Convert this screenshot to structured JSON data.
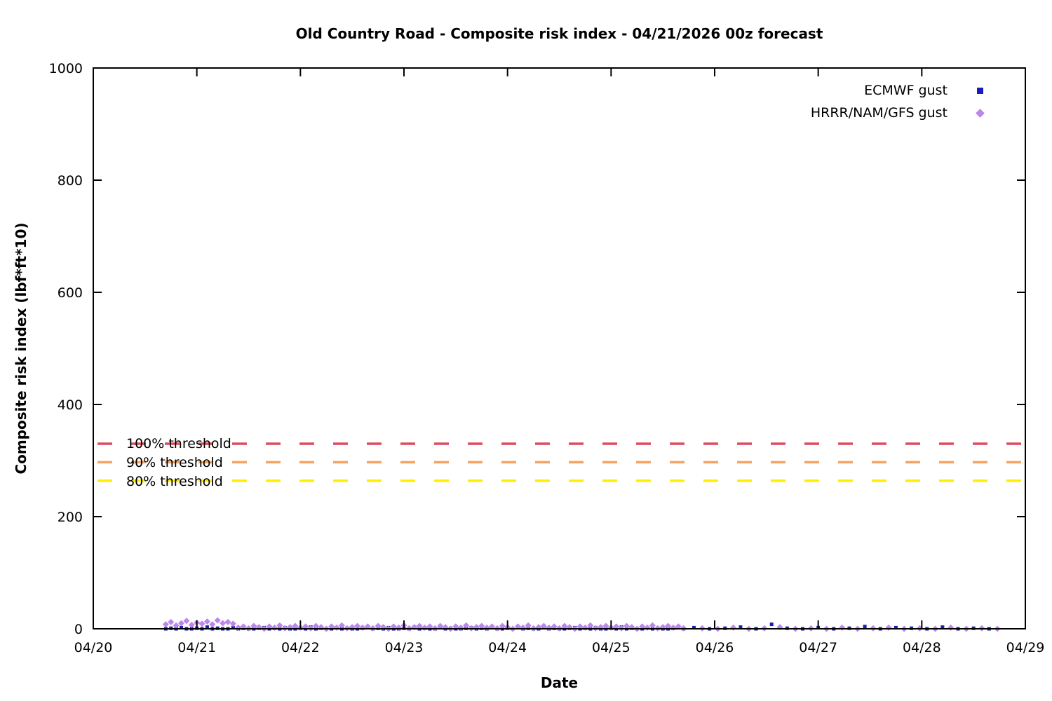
{
  "chart_data": {
    "type": "scatter",
    "title": "Old Country Road - Composite risk index - 04/21/2026 00z forecast",
    "xlabel": "Date",
    "ylabel": "Composite risk index (lbf*ft*10)",
    "xlim": [
      0,
      9
    ],
    "ylim": [
      0,
      1000
    ],
    "grid": false,
    "legend_position": "top-right-inside",
    "axis_color": "#000000",
    "x_ticks": [
      {
        "value": 0,
        "label": "04/20"
      },
      {
        "value": 1,
        "label": "04/21"
      },
      {
        "value": 2,
        "label": "04/22"
      },
      {
        "value": 3,
        "label": "04/23"
      },
      {
        "value": 4,
        "label": "04/24"
      },
      {
        "value": 5,
        "label": "04/25"
      },
      {
        "value": 6,
        "label": "04/26"
      },
      {
        "value": 7,
        "label": "04/27"
      },
      {
        "value": 8,
        "label": "04/28"
      },
      {
        "value": 9,
        "label": "04/29"
      }
    ],
    "y_ticks": [
      {
        "value": 0,
        "label": "0"
      },
      {
        "value": 200,
        "label": "200"
      },
      {
        "value": 400,
        "label": "400"
      },
      {
        "value": 600,
        "label": "600"
      },
      {
        "value": 800,
        "label": "800"
      },
      {
        "value": 1000,
        "label": "1000"
      }
    ],
    "thresholds": [
      {
        "label": "100% threshold",
        "value": 330,
        "color": "#dd4b5f"
      },
      {
        "label": "90% threshold",
        "value": 297,
        "color": "#f4a460"
      },
      {
        "label": "80% threshold",
        "value": 264,
        "color": "#ffee00"
      }
    ],
    "series": [
      {
        "name": "ECMWF gust",
        "marker": "square",
        "color": "#1c1cb8",
        "points": [
          [
            0.7,
            0
          ],
          [
            0.75,
            1
          ],
          [
            0.8,
            0
          ],
          [
            0.85,
            2
          ],
          [
            0.9,
            0
          ],
          [
            0.95,
            0
          ],
          [
            1.0,
            1
          ],
          [
            1.05,
            0
          ],
          [
            1.1,
            3
          ],
          [
            1.15,
            0
          ],
          [
            1.2,
            1
          ],
          [
            1.25,
            0
          ],
          [
            1.3,
            0
          ],
          [
            1.35,
            2
          ],
          [
            1.4,
            0
          ],
          [
            1.45,
            1
          ],
          [
            1.5,
            0
          ],
          [
            1.55,
            0
          ],
          [
            1.6,
            1
          ],
          [
            1.65,
            2
          ],
          [
            1.7,
            0
          ],
          [
            1.75,
            1
          ],
          [
            1.8,
            0
          ],
          [
            1.85,
            2
          ],
          [
            1.9,
            0
          ],
          [
            1.95,
            0
          ],
          [
            2.0,
            1
          ],
          [
            2.05,
            0
          ],
          [
            2.1,
            3
          ],
          [
            2.15,
            0
          ],
          [
            2.2,
            1
          ],
          [
            2.25,
            0
          ],
          [
            2.3,
            0
          ],
          [
            2.35,
            2
          ],
          [
            2.4,
            0
          ],
          [
            2.45,
            1
          ],
          [
            2.5,
            0
          ],
          [
            2.55,
            0
          ],
          [
            2.6,
            1
          ],
          [
            2.65,
            2
          ],
          [
            2.7,
            0
          ],
          [
            2.75,
            1
          ],
          [
            2.8,
            0
          ],
          [
            2.85,
            2
          ],
          [
            2.9,
            0
          ],
          [
            2.95,
            0
          ],
          [
            3.0,
            1
          ],
          [
            3.05,
            0
          ],
          [
            3.1,
            3
          ],
          [
            3.15,
            0
          ],
          [
            3.2,
            1
          ],
          [
            3.25,
            0
          ],
          [
            3.3,
            0
          ],
          [
            3.35,
            2
          ],
          [
            3.4,
            0
          ],
          [
            3.45,
            1
          ],
          [
            3.5,
            0
          ],
          [
            3.55,
            0
          ],
          [
            3.6,
            1
          ],
          [
            3.65,
            2
          ],
          [
            3.7,
            0
          ],
          [
            3.75,
            1
          ],
          [
            3.8,
            0
          ],
          [
            3.85,
            2
          ],
          [
            3.9,
            0
          ],
          [
            3.95,
            0
          ],
          [
            4.0,
            1
          ],
          [
            4.05,
            0
          ],
          [
            4.1,
            3
          ],
          [
            4.15,
            0
          ],
          [
            4.2,
            1
          ],
          [
            4.25,
            0
          ],
          [
            4.3,
            0
          ],
          [
            4.35,
            2
          ],
          [
            4.4,
            0
          ],
          [
            4.45,
            1
          ],
          [
            4.5,
            0
          ],
          [
            4.55,
            0
          ],
          [
            4.6,
            1
          ],
          [
            4.65,
            2
          ],
          [
            4.7,
            0
          ],
          [
            4.75,
            1
          ],
          [
            4.8,
            0
          ],
          [
            4.85,
            2
          ],
          [
            4.9,
            0
          ],
          [
            4.95,
            0
          ],
          [
            5.0,
            1
          ],
          [
            5.05,
            0
          ],
          [
            5.1,
            3
          ],
          [
            5.15,
            0
          ],
          [
            5.2,
            1
          ],
          [
            5.25,
            0
          ],
          [
            5.3,
            0
          ],
          [
            5.35,
            2
          ],
          [
            5.4,
            0
          ],
          [
            5.45,
            1
          ],
          [
            5.5,
            0
          ],
          [
            5.55,
            0
          ],
          [
            5.6,
            1
          ],
          [
            5.65,
            2
          ],
          [
            5.7,
            0
          ],
          [
            5.8,
            2
          ],
          [
            5.95,
            0
          ],
          [
            6.1,
            1
          ],
          [
            6.25,
            3
          ],
          [
            6.4,
            0
          ],
          [
            6.55,
            8
          ],
          [
            6.7,
            1
          ],
          [
            6.85,
            0
          ],
          [
            7.0,
            2
          ],
          [
            7.15,
            0
          ],
          [
            7.3,
            1
          ],
          [
            7.45,
            4
          ],
          [
            7.6,
            0
          ],
          [
            7.75,
            2
          ],
          [
            7.9,
            1
          ],
          [
            8.05,
            0
          ],
          [
            8.2,
            3
          ],
          [
            8.35,
            0
          ],
          [
            8.5,
            1
          ],
          [
            8.65,
            0
          ]
        ]
      },
      {
        "name": "HRRR/NAM/GFS gust",
        "marker": "diamond",
        "color": "#bb86ee",
        "points": [
          [
            0.7,
            8
          ],
          [
            0.75,
            12
          ],
          [
            0.8,
            6
          ],
          [
            0.85,
            10
          ],
          [
            0.9,
            14
          ],
          [
            0.95,
            7
          ],
          [
            1.0,
            11
          ],
          [
            1.05,
            9
          ],
          [
            1.1,
            13
          ],
          [
            1.15,
            8
          ],
          [
            1.2,
            15
          ],
          [
            1.25,
            10
          ],
          [
            1.3,
            12
          ],
          [
            1.35,
            9
          ],
          [
            1.4,
            2
          ],
          [
            1.45,
            4
          ],
          [
            1.5,
            1
          ],
          [
            1.55,
            5
          ],
          [
            1.6,
            3
          ],
          [
            1.65,
            0
          ],
          [
            1.7,
            4
          ],
          [
            1.75,
            2
          ],
          [
            1.8,
            6
          ],
          [
            1.85,
            1
          ],
          [
            1.9,
            3
          ],
          [
            1.95,
            5
          ],
          [
            2.0,
            2
          ],
          [
            2.05,
            4
          ],
          [
            2.1,
            1
          ],
          [
            2.15,
            5
          ],
          [
            2.2,
            3
          ],
          [
            2.25,
            0
          ],
          [
            2.3,
            4
          ],
          [
            2.35,
            2
          ],
          [
            2.4,
            6
          ],
          [
            2.45,
            1
          ],
          [
            2.5,
            3
          ],
          [
            2.55,
            5
          ],
          [
            2.6,
            2
          ],
          [
            2.65,
            4
          ],
          [
            2.7,
            1
          ],
          [
            2.75,
            5
          ],
          [
            2.8,
            3
          ],
          [
            2.85,
            0
          ],
          [
            2.9,
            4
          ],
          [
            2.95,
            2
          ],
          [
            3.0,
            6
          ],
          [
            3.05,
            1
          ],
          [
            3.1,
            3
          ],
          [
            3.15,
            5
          ],
          [
            3.2,
            2
          ],
          [
            3.25,
            4
          ],
          [
            3.3,
            1
          ],
          [
            3.35,
            5
          ],
          [
            3.4,
            3
          ],
          [
            3.45,
            0
          ],
          [
            3.5,
            4
          ],
          [
            3.55,
            2
          ],
          [
            3.6,
            6
          ],
          [
            3.65,
            1
          ],
          [
            3.7,
            3
          ],
          [
            3.75,
            5
          ],
          [
            3.8,
            2
          ],
          [
            3.85,
            4
          ],
          [
            3.9,
            1
          ],
          [
            3.95,
            5
          ],
          [
            4.0,
            3
          ],
          [
            4.05,
            0
          ],
          [
            4.1,
            4
          ],
          [
            4.15,
            2
          ],
          [
            4.2,
            6
          ],
          [
            4.25,
            1
          ],
          [
            4.3,
            3
          ],
          [
            4.35,
            5
          ],
          [
            4.4,
            2
          ],
          [
            4.45,
            4
          ],
          [
            4.5,
            1
          ],
          [
            4.55,
            5
          ],
          [
            4.6,
            3
          ],
          [
            4.65,
            0
          ],
          [
            4.7,
            4
          ],
          [
            4.75,
            2
          ],
          [
            4.8,
            6
          ],
          [
            4.85,
            1
          ],
          [
            4.9,
            3
          ],
          [
            4.95,
            5
          ],
          [
            5.0,
            2
          ],
          [
            5.05,
            4
          ],
          [
            5.1,
            1
          ],
          [
            5.15,
            5
          ],
          [
            5.2,
            3
          ],
          [
            5.25,
            0
          ],
          [
            5.3,
            4
          ],
          [
            5.35,
            2
          ],
          [
            5.4,
            6
          ],
          [
            5.45,
            1
          ],
          [
            5.5,
            3
          ],
          [
            5.55,
            5
          ],
          [
            5.6,
            2
          ],
          [
            5.65,
            4
          ],
          [
            5.7,
            1
          ],
          [
            5.88,
            1
          ],
          [
            6.03,
            0
          ],
          [
            6.18,
            2
          ],
          [
            6.33,
            0
          ],
          [
            6.48,
            1
          ],
          [
            6.63,
            3
          ],
          [
            6.78,
            0
          ],
          [
            6.93,
            1
          ],
          [
            7.08,
            0
          ],
          [
            7.23,
            2
          ],
          [
            7.38,
            0
          ],
          [
            7.53,
            1
          ],
          [
            7.68,
            2
          ],
          [
            7.83,
            0
          ],
          [
            7.98,
            1
          ],
          [
            8.13,
            0
          ],
          [
            8.28,
            2
          ],
          [
            8.43,
            0
          ],
          [
            8.58,
            1
          ],
          [
            8.73,
            0
          ]
        ]
      }
    ]
  }
}
